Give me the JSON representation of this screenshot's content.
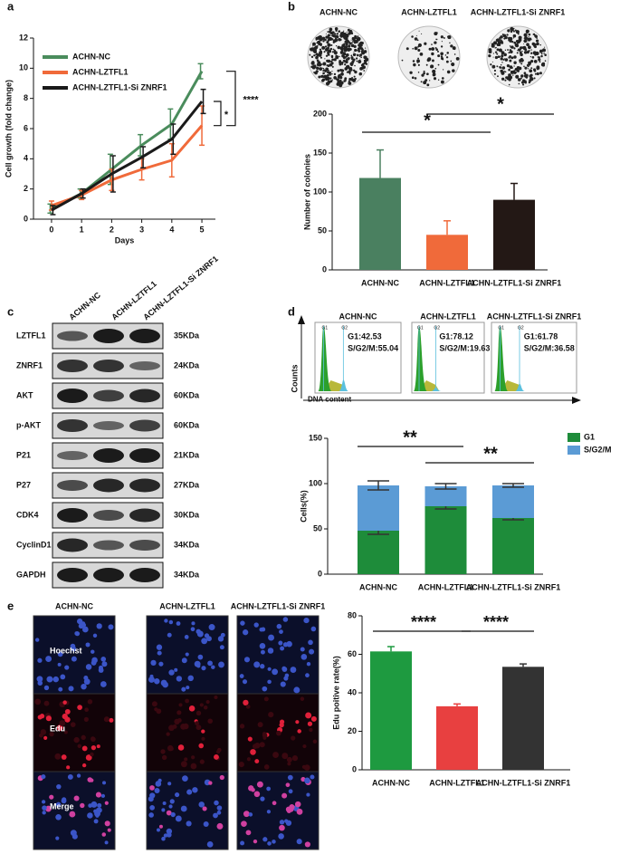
{
  "panel_labels": [
    "a",
    "b",
    "c",
    "d",
    "e"
  ],
  "chart_data": [
    {
      "type": "line",
      "ylabel": "Cell growth (fold change)",
      "xlabel": "Days",
      "x": [
        0,
        1,
        2,
        3,
        4,
        5
      ],
      "xlim": [
        -0.6,
        5.45
      ],
      "xticks": [
        0,
        1,
        2,
        3,
        4,
        5
      ],
      "ylim": [
        0,
        12
      ],
      "yticks": [
        0,
        2,
        4,
        6,
        8,
        10,
        12
      ],
      "legend": "upper left",
      "series": [
        {
          "name": "ACHN-NC",
          "color": "#4a8c5c",
          "values": [
            0.7,
            1.7,
            3.3,
            4.9,
            6.3,
            9.8
          ],
          "errors": [
            0.3,
            0.3,
            1.0,
            0.7,
            1.0,
            0.5
          ]
        },
        {
          "name": "ACHN-LZTFL1",
          "color": "#f06a3a",
          "values": [
            0.9,
            1.6,
            2.6,
            3.3,
            3.9,
            6.2
          ],
          "errors": [
            0.3,
            0.3,
            0.7,
            0.7,
            1.1,
            1.3
          ]
        },
        {
          "name": "ACHN-LZTFL1-Si ZNRF1",
          "color": "#1a1a1a",
          "values": [
            0.6,
            1.7,
            3.0,
            4.1,
            5.3,
            7.8
          ],
          "errors": [
            0.3,
            0.3,
            1.2,
            0.7,
            1.0,
            0.8
          ]
        }
      ],
      "annotations": [
        "****",
        "*"
      ]
    },
    {
      "type": "bar",
      "ylabel": "Number of colonies",
      "categories": [
        "ACHN-NC",
        "ACHN-LZTFL1",
        "ACHN-LZTFL1-Si ZNRF1"
      ],
      "values": [
        118,
        45,
        90
      ],
      "errors": [
        36,
        18,
        21
      ],
      "colors": [
        "#4a8060",
        "#f06a3a",
        "#231815"
      ],
      "ylim": [
        0,
        200
      ],
      "yticks": [
        0,
        50,
        100,
        150,
        200
      ],
      "annotations": [
        "*",
        "*"
      ]
    },
    {
      "type": "stacked_bar",
      "ylabel": "Cells(%)",
      "categories": [
        "ACHN-NC",
        "ACHN-LZTFL1",
        "ACHN-LZTFL1-Si ZNRF1"
      ],
      "series": [
        {
          "name": "G1",
          "color": "#1e8c3a",
          "values": [
            48,
            75,
            62
          ],
          "errors": [
            4,
            3,
            2
          ]
        },
        {
          "name": "S/G2/M",
          "color": "#5b9bd5",
          "values": [
            50,
            22,
            36
          ],
          "errors": [
            5,
            3,
            2
          ]
        }
      ],
      "ylim": [
        0,
        150
      ],
      "yticks": [
        0,
        50,
        100,
        150
      ],
      "legend": "upper right",
      "annotations": [
        "**",
        "**"
      ]
    },
    {
      "type": "bar",
      "ylabel": "Edu poitive rate(%)",
      "categories": [
        "ACHN-NC",
        "ACHN-LZTFL1",
        "ACHN-LZTFL1-Si ZNRF1"
      ],
      "values": [
        61.5,
        33,
        53.5
      ],
      "errors": [
        2.5,
        1.2,
        1.5
      ],
      "colors": [
        "#1e9a40",
        "#e84040",
        "#333333"
      ],
      "ylim": [
        0,
        80
      ],
      "yticks": [
        0,
        20,
        40,
        60,
        80
      ],
      "annotations": [
        "****",
        "****"
      ]
    }
  ],
  "colony_images": {
    "labels": [
      "ACHN-NC",
      "ACHN-LZTFL1",
      "ACHN-LZTFL1-Si ZNRF1"
    ]
  },
  "western_blot": {
    "columns": [
      "ACHN-NC",
      "ACHN-LZTFL1",
      "ACHN-LZTFL1-Si ZNRF1"
    ],
    "rows": [
      {
        "protein": "LZTFL1",
        "size": "35KDa"
      },
      {
        "protein": "ZNRF1",
        "size": "24KDa"
      },
      {
        "protein": "AKT",
        "size": "60KDa"
      },
      {
        "protein": "p-AKT",
        "size": "60KDa"
      },
      {
        "protein": "P21",
        "size": "21KDa"
      },
      {
        "protein": "P27",
        "size": "27KDa"
      },
      {
        "protein": "CDK4",
        "size": "30KDa"
      },
      {
        "protein": "CyclinD1",
        "size": "34KDa"
      },
      {
        "protein": "GAPDH",
        "size": "34KDa"
      }
    ]
  },
  "flow_cytometry": {
    "y_label": "Counts",
    "x_label": "DNA content",
    "peaks": [
      "G1",
      "G2"
    ],
    "panels": [
      {
        "title": "ACHN-NC",
        "g1": "G1:42.53",
        "sg2m": "S/G2/M:55.04"
      },
      {
        "title": "ACHN-LZTFL1",
        "g1": "G1:78.12",
        "sg2m": "S/G2/M:19.63"
      },
      {
        "title": "ACHN-LZTFL1-Si ZNRF1",
        "g1": "G1:61.78",
        "sg2m": "S/G2/M:36.58"
      }
    ]
  },
  "edu_images": {
    "columns": [
      "ACHN-NC",
      "ACHN-LZTFL1",
      "ACHN-LZTFL1-Si ZNRF1"
    ],
    "rows": [
      "Hoechst",
      "Edu",
      "Merge"
    ]
  }
}
